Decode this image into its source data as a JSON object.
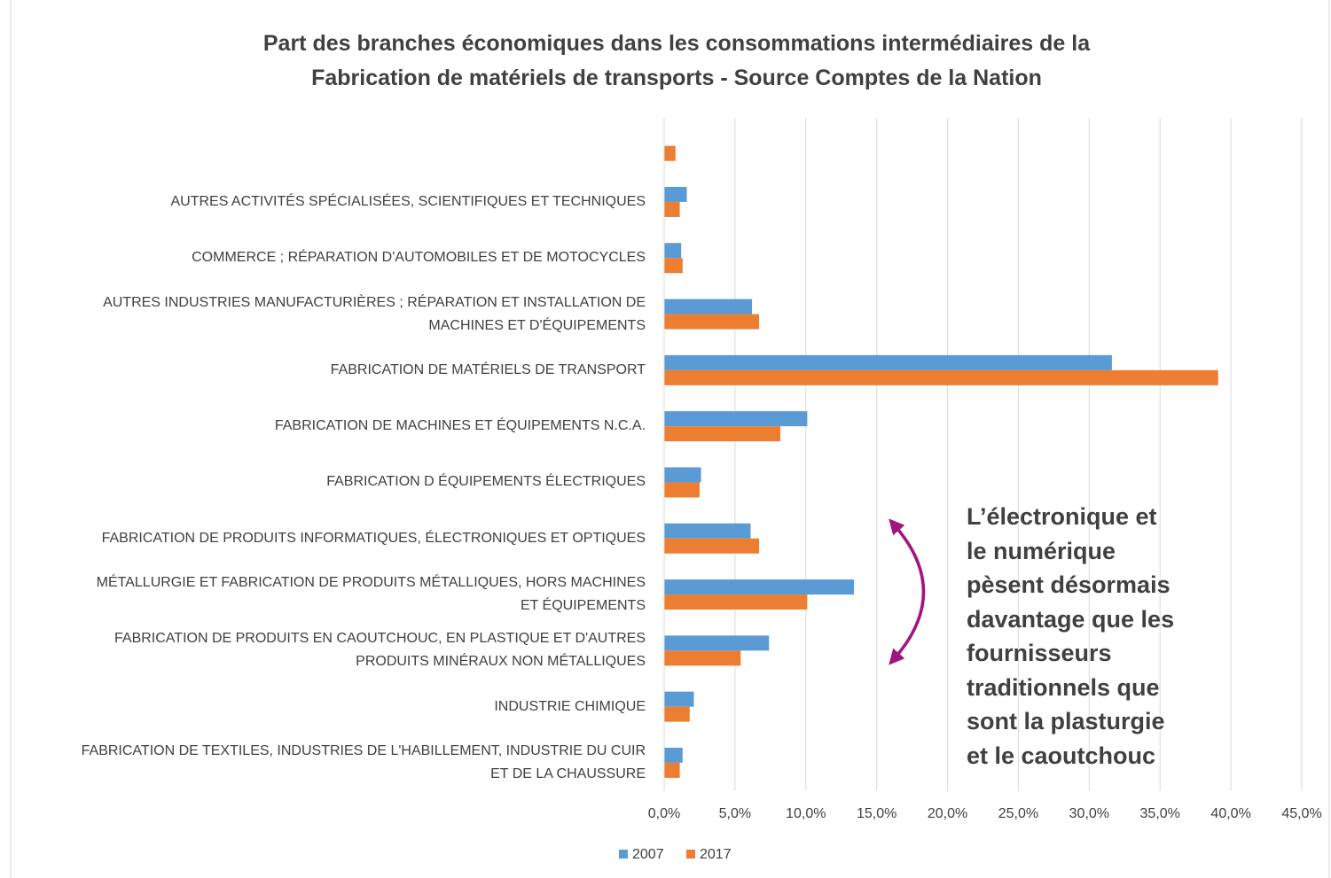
{
  "chart_data": {
    "type": "bar",
    "orientation": "horizontal",
    "title": "Part des branches économiques dans les consommations intermédiaires de la\nFabrication de matériels de transports - Source Comptes de la Nation",
    "categories": [
      null,
      "AUTRES ACTIVITÉS SPÉCIALISÉES, SCIENTIFIQUES ET TECHNIQUES",
      "COMMERCE ; RÉPARATION D'AUTOMOBILES ET DE MOTOCYCLES",
      "AUTRES INDUSTRIES MANUFACTURIÈRES ; RÉPARATION ET INSTALLATION DE\nMACHINES ET D'ÉQUIPEMENTS",
      "FABRICATION DE MATÉRIELS DE TRANSPORT",
      "FABRICATION DE MACHINES ET ÉQUIPEMENTS N.C.A.",
      "FABRICATION D ÉQUIPEMENTS ÉLECTRIQUES",
      "FABRICATION DE PRODUITS INFORMATIQUES, ÉLECTRONIQUES ET OPTIQUES",
      "MÉTALLURGIE ET FABRICATION DE PRODUITS MÉTALLIQUES, HORS MACHINES\nET ÉQUIPEMENTS",
      "FABRICATION DE PRODUITS EN CAOUTCHOUC, EN PLASTIQUE ET D'AUTRES\nPRODUITS MINÉRAUX NON MÉTALLIQUES",
      "INDUSTRIE CHIMIQUE",
      "FABRICATION DE TEXTILES, INDUSTRIES DE L'HABILLEMENT, INDUSTRIE DU CUIR\nET DE LA CHAUSSURE"
    ],
    "series": [
      {
        "name": "2007",
        "color": "#5b9bd5",
        "values": [
          null,
          1.6,
          1.2,
          6.2,
          31.6,
          10.1,
          2.6,
          6.1,
          13.4,
          7.4,
          2.1,
          1.3
        ]
      },
      {
        "name": "2017",
        "color": "#ed7d31",
        "values": [
          0.8,
          1.1,
          1.3,
          6.7,
          39.1,
          8.2,
          2.5,
          6.7,
          10.1,
          5.4,
          1.8,
          1.1
        ]
      }
    ],
    "xlim": [
      0,
      45
    ],
    "xticks": [
      {
        "value": 0,
        "label": "0,0%"
      },
      {
        "value": 5,
        "label": "5,0%"
      },
      {
        "value": 10,
        "label": "10,0%"
      },
      {
        "value": 15,
        "label": "15,0%"
      },
      {
        "value": 20,
        "label": "20,0%"
      },
      {
        "value": 25,
        "label": "25,0%"
      },
      {
        "value": 30,
        "label": "30,0%"
      },
      {
        "value": 35,
        "label": "35,0%"
      },
      {
        "value": 40,
        "label": "40,0%"
      },
      {
        "value": 45,
        "label": "45,0%"
      }
    ],
    "grid": true,
    "legend": "bottom",
    "annotation": "L’électronique et\nle numérique\npèsent désormais\ndavantage que les\nfournisseurs\ntraditionnels que\nsont la plasturgie\net le caoutchouc"
  }
}
